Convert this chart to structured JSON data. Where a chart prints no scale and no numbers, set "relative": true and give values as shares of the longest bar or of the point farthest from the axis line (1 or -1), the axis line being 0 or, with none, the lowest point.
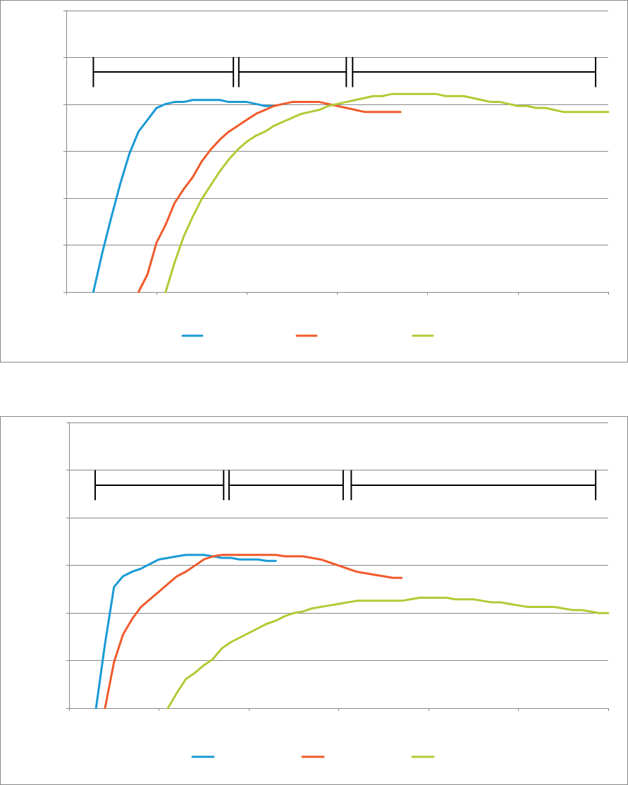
{
  "chart_data": [
    {
      "type": "line",
      "relative": true,
      "grid": "y",
      "categories": [
        null,
        null,
        null,
        null,
        null,
        null,
        null,
        null,
        null,
        null,
        null,
        null,
        null,
        null,
        null,
        null,
        null,
        null,
        null,
        null,
        null,
        null,
        null,
        null,
        null,
        null,
        null,
        null,
        null,
        null,
        null,
        null,
        null,
        null,
        null,
        null,
        null,
        null,
        null,
        null,
        null,
        null,
        null,
        null,
        null,
        null,
        null,
        null,
        null,
        null,
        null,
        null,
        null,
        null,
        null,
        null,
        null,
        null,
        null,
        null,
        null
      ],
      "series": [
        {
          "color": "#1a9ad6",
          "values": [
            null,
            null,
            null,
            0,
            0.2,
            0.38,
            0.55,
            0.7,
            0.81,
            0.87,
            0.93,
            0.95,
            0.96,
            0.96,
            0.97,
            0.97,
            0.97,
            0.97,
            0.96,
            0.96,
            0.96,
            0.95,
            0.94,
            0.94,
            null,
            null,
            null,
            null,
            null,
            null,
            null,
            null,
            null,
            null,
            null,
            null,
            null,
            null,
            null,
            null,
            null,
            null,
            null,
            null,
            null,
            null,
            null,
            null,
            null,
            null,
            null,
            null,
            null,
            null,
            null,
            null,
            null,
            null,
            null,
            null,
            null
          ]
        },
        {
          "color": "#f15a2b",
          "values": [
            null,
            null,
            null,
            null,
            null,
            null,
            null,
            null,
            0,
            0.09,
            0.25,
            0.34,
            0.45,
            0.52,
            0.58,
            0.66,
            0.72,
            0.77,
            0.81,
            0.84,
            0.87,
            0.9,
            0.92,
            0.94,
            0.95,
            0.96,
            0.96,
            0.96,
            0.96,
            0.95,
            0.94,
            0.93,
            0.92,
            0.91,
            0.91,
            0.91,
            0.91,
            0.91,
            null,
            null,
            null,
            null,
            null,
            null,
            null,
            null,
            null,
            null,
            null,
            null,
            null,
            null,
            null,
            null,
            null,
            null,
            null,
            null,
            null,
            null,
            null
          ]
        },
        {
          "color": "#b4c935",
          "values": [
            null,
            null,
            null,
            null,
            null,
            null,
            null,
            null,
            null,
            null,
            null,
            0,
            0.15,
            0.28,
            0.38,
            0.47,
            0.54,
            0.61,
            0.67,
            0.72,
            0.76,
            0.79,
            0.81,
            0.84,
            0.86,
            0.88,
            0.9,
            0.91,
            0.92,
            0.94,
            0.95,
            0.96,
            0.97,
            0.98,
            0.99,
            0.99,
            1,
            1,
            1,
            1,
            1,
            1,
            0.99,
            0.99,
            0.99,
            0.98,
            0.97,
            0.96,
            0.96,
            0.95,
            0.94,
            0.94,
            0.93,
            0.93,
            0.92,
            0.91,
            0.91,
            0.91,
            0.91,
            0.91,
            0.91
          ]
        }
      ]
    },
    {
      "type": "line",
      "relative": true,
      "grid": "y",
      "categories": [
        null,
        null,
        null,
        null,
        null,
        null,
        null,
        null,
        null,
        null,
        null,
        null,
        null,
        null,
        null,
        null,
        null,
        null,
        null,
        null,
        null,
        null,
        null,
        null,
        null,
        null,
        null,
        null,
        null,
        null,
        null,
        null,
        null,
        null,
        null,
        null,
        null,
        null,
        null,
        null,
        null,
        null,
        null,
        null,
        null,
        null,
        null,
        null,
        null,
        null,
        null,
        null,
        null,
        null,
        null,
        null,
        null,
        null,
        null,
        null,
        null
      ],
      "series": [
        {
          "color": "#1a9ad6",
          "values": [
            null,
            null,
            null,
            0,
            0.42,
            0.79,
            0.86,
            0.89,
            0.91,
            0.94,
            0.97,
            0.98,
            0.99,
            1,
            1,
            1,
            0.99,
            0.98,
            0.98,
            0.97,
            0.97,
            0.97,
            0.96,
            0.96,
            null,
            null,
            null,
            null,
            null,
            null,
            null,
            null,
            null,
            null,
            null,
            null,
            null,
            null,
            null,
            null,
            null,
            null,
            null,
            null,
            null,
            null,
            null,
            null,
            null,
            null,
            null,
            null,
            null,
            null,
            null,
            null,
            null,
            null,
            null,
            null,
            null
          ]
        },
        {
          "color": "#f15a2b",
          "values": [
            null,
            null,
            null,
            null,
            0,
            0.3,
            0.48,
            0.58,
            0.66,
            0.71,
            0.76,
            0.81,
            0.86,
            0.89,
            0.93,
            0.97,
            0.99,
            1,
            1,
            1,
            1,
            1,
            1,
            1,
            0.99,
            0.99,
            0.99,
            0.98,
            0.97,
            0.95,
            0.93,
            0.91,
            0.89,
            0.88,
            0.87,
            0.86,
            0.85,
            0.85,
            null,
            null,
            null,
            null,
            null,
            null,
            null,
            null,
            null,
            null,
            null,
            null,
            null,
            null,
            null,
            null,
            null,
            null,
            null,
            null,
            null,
            null,
            null
          ]
        },
        {
          "color": "#b4c935",
          "values": [
            null,
            null,
            null,
            null,
            null,
            null,
            null,
            null,
            null,
            null,
            null,
            0,
            0.1,
            0.19,
            0.23,
            0.28,
            0.32,
            0.39,
            0.43,
            0.46,
            0.49,
            0.52,
            0.55,
            0.57,
            0.6,
            0.62,
            0.63,
            0.65,
            0.66,
            0.67,
            0.68,
            0.69,
            0.7,
            0.7,
            0.7,
            0.7,
            0.7,
            0.7,
            0.71,
            0.72,
            0.72,
            0.72,
            0.72,
            0.71,
            0.71,
            0.71,
            0.7,
            0.69,
            0.69,
            0.68,
            0.67,
            0.66,
            0.66,
            0.66,
            0.66,
            0.65,
            0.64,
            0.64,
            0.63,
            0.62,
            0.62
          ]
        }
      ]
    }
  ]
}
